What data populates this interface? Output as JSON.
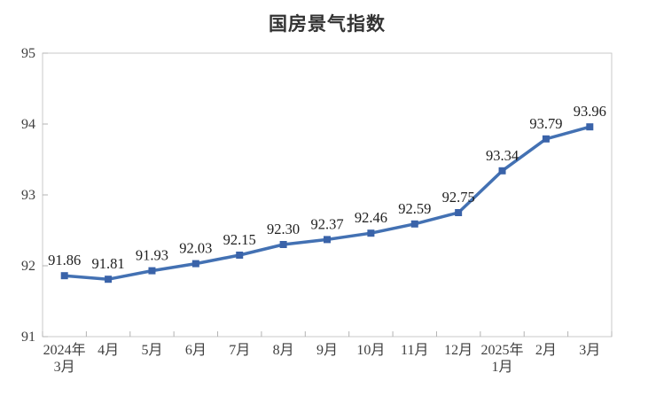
{
  "chart": {
    "title": "国房景气指数"
  },
  "colors": {
    "line": "#4371B3",
    "marker": "#3A63A9",
    "plot_border": "#c9c9c9",
    "tick": "#b3b3b3",
    "axis_label": "#404040",
    "data_label": "#1f1f1f",
    "title": "#333333",
    "background": "#ffffff"
  },
  "chart_data": {
    "type": "line",
    "title": "国房景气指数",
    "categories": [
      [
        "2024年",
        "3月"
      ],
      [
        "4月"
      ],
      [
        "5月"
      ],
      [
        "6月"
      ],
      [
        "7月"
      ],
      [
        "8月"
      ],
      [
        "9月"
      ],
      [
        "10月"
      ],
      [
        "11月"
      ],
      [
        "12月"
      ],
      [
        "2025年",
        "1月"
      ],
      [
        "2月"
      ],
      [
        "3月"
      ]
    ],
    "series": [
      {
        "name": "国房景气指数",
        "values": [
          91.86,
          91.81,
          91.93,
          92.03,
          92.15,
          92.3,
          92.37,
          92.46,
          92.59,
          92.75,
          93.34,
          93.79,
          93.96
        ],
        "data_labels": [
          "91.86",
          "91.81",
          "91.93",
          "92.03",
          "92.15",
          "92.30",
          "92.37",
          "92.46",
          "92.59",
          "92.75",
          "93.34",
          "93.79",
          "93.96"
        ]
      }
    ],
    "ylim": [
      91,
      95
    ],
    "ytick_labels": [
      "91",
      "92",
      "93",
      "94",
      "95"
    ],
    "grid": false,
    "legend": "none",
    "marker_style": "square",
    "data_label_position": "above"
  }
}
